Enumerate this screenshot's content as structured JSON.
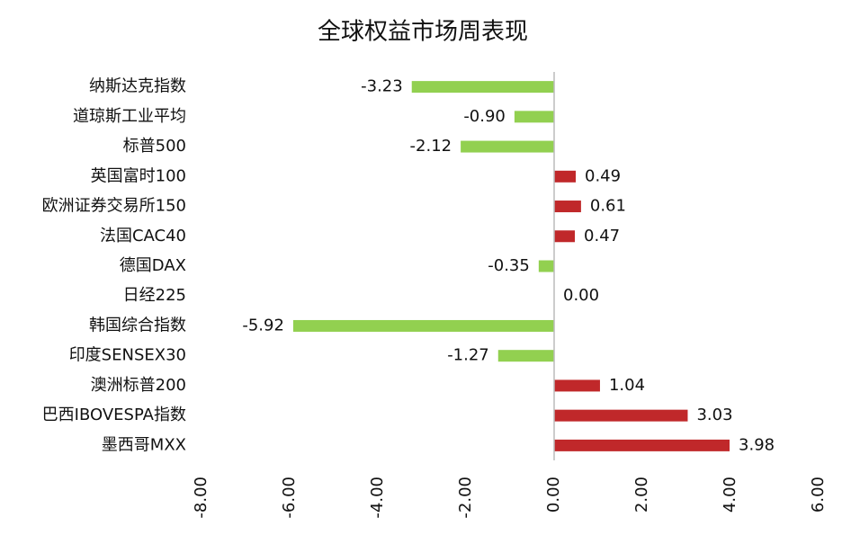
{
  "chart_data": {
    "type": "hbar",
    "title": "全球权益市场周表现",
    "categories": [
      "纳斯达克指数",
      "道琼斯工业平均",
      "标普500",
      "英国富时100",
      "欧洲证券交易所150",
      "法国CAC40",
      "德国DAX",
      "日经225",
      "韩国综合指数",
      "印度SENSEX30",
      "澳洲标普200",
      "巴西IBOVESPA指数",
      "墨西哥MXX"
    ],
    "values": [
      -3.23,
      -0.9,
      -2.12,
      0.49,
      0.61,
      0.47,
      -0.35,
      0,
      -5.92,
      -1.27,
      1.04,
      3.03,
      3.98
    ],
    "value_labels": [
      "-3.23",
      "-0.90",
      "-2.12",
      "0.49",
      "0.61",
      "0.47",
      "-0.35",
      "0.00",
      "-5.92",
      "-1.27",
      "1.04",
      "3.03",
      "3.98"
    ],
    "color": "#c0282a",
    "negative_color": "#92d050",
    "xlim": [
      -8,
      6
    ],
    "xticks": [
      {
        "value": -8,
        "label": "-8.00"
      },
      {
        "value": -6,
        "label": "-6.00"
      },
      {
        "value": -4,
        "label": "-4.00"
      },
      {
        "value": -2,
        "label": "-2.00"
      },
      {
        "value": 0,
        "label": "0.00"
      },
      {
        "value": 2,
        "label": "2.00"
      },
      {
        "value": 4,
        "label": "4.00"
      },
      {
        "value": 6,
        "label": "6.00"
      }
    ],
    "grid": false
  }
}
